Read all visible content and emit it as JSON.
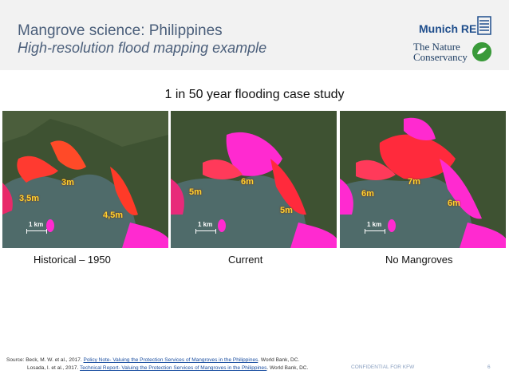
{
  "header": {
    "title": "Mangrove science: Philippines",
    "subtitle": "High-resolution flood mapping example"
  },
  "logos": {
    "munich_re": "Munich RE",
    "tnc_line1": "The Nature",
    "tnc_line2": "Conservancy"
  },
  "case_title": "1 in 50 year flooding case study",
  "panels": [
    {
      "caption": "Historical – 1950",
      "scale_label": "1 km",
      "depth_labels": [
        "3m",
        "3,5m",
        "4,5m"
      ]
    },
    {
      "caption": "Current",
      "scale_label": "1 km",
      "depth_labels": [
        "5m",
        "6m",
        "5m"
      ]
    },
    {
      "caption": "No Mangroves",
      "scale_label": "1 km",
      "depth_labels": [
        "6m",
        "7m",
        "6m"
      ]
    }
  ],
  "source": {
    "prefix": "Source:",
    "line1_before": "Beck, M. W. et al., 2017.",
    "line1_link": "Policy Note- Valuing the Protection Services of Mangroves in the Philippines",
    "line1_after": ". World Bank, DC.",
    "line2_before": "Losada, I. et al., 2017.",
    "line2_link": "Technical Report- Valuing the Protection Services of Mangroves in the Philippines",
    "line2_after": ". World Bank, DC."
  },
  "footer": {
    "confidential": "CONFIDENTIAL FOR KFW",
    "page_number": "6"
  },
  "colors": {
    "title": "#4a5e7a",
    "flood_red": "#ff2a3c",
    "flood_magenta": "#ff2ad0",
    "water": "#4f6b6a",
    "land": "#3e5232"
  }
}
